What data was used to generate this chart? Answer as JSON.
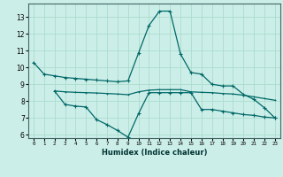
{
  "xlabel": "Humidex (Indice chaleur)",
  "bg_color": "#cceee8",
  "grid_color": "#aaddcc",
  "line_color": "#006868",
  "xlim": [
    -0.5,
    23.5
  ],
  "ylim": [
    5.8,
    13.8
  ],
  "yticks": [
    6,
    7,
    8,
    9,
    10,
    11,
    12,
    13
  ],
  "xticks": [
    0,
    1,
    2,
    3,
    4,
    5,
    6,
    7,
    8,
    9,
    10,
    11,
    12,
    13,
    14,
    15,
    16,
    17,
    18,
    19,
    20,
    21,
    22,
    23
  ],
  "line1_x": [
    0,
    1,
    2,
    3,
    4,
    5,
    6,
    7,
    8,
    9,
    10,
    11,
    12,
    13,
    14,
    15,
    16,
    17,
    18,
    19,
    20,
    21,
    22,
    23
  ],
  "line1_y": [
    10.3,
    9.6,
    9.5,
    9.4,
    9.35,
    9.3,
    9.25,
    9.2,
    9.15,
    9.2,
    10.85,
    12.5,
    13.35,
    13.35,
    10.8,
    9.7,
    9.6,
    9.0,
    8.9,
    8.9,
    8.4,
    8.1,
    7.6,
    7.0
  ],
  "line2_x": [
    2,
    3,
    4,
    5,
    6,
    7,
    8,
    9,
    10,
    11,
    12,
    13,
    14,
    15,
    16,
    17,
    18,
    19,
    20,
    21,
    22,
    23
  ],
  "line2_y": [
    8.6,
    7.8,
    7.7,
    7.65,
    6.9,
    6.6,
    6.25,
    5.85,
    7.25,
    8.5,
    8.5,
    8.5,
    8.5,
    8.5,
    7.5,
    7.5,
    7.4,
    7.3,
    7.2,
    7.15,
    7.05,
    7.0
  ],
  "line3_x": [
    2,
    3,
    4,
    5,
    6,
    7,
    8,
    9,
    10,
    11,
    12,
    13,
    14,
    15,
    16,
    17,
    18,
    19,
    20,
    21,
    22,
    23
  ],
  "line3_y": [
    8.6,
    8.55,
    8.52,
    8.5,
    8.48,
    8.45,
    8.42,
    8.38,
    8.55,
    8.65,
    8.68,
    8.68,
    8.68,
    8.55,
    8.52,
    8.5,
    8.45,
    8.42,
    8.35,
    8.25,
    8.15,
    8.05
  ]
}
